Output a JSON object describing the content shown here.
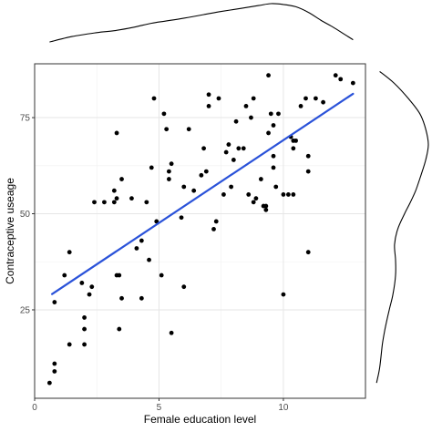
{
  "chart_data": {
    "type": "scatter",
    "xlabel": "Female education level",
    "ylabel": "Contraceptive useage",
    "xlim": [
      0,
      13.3
    ],
    "ylim": [
      2,
      89
    ],
    "x_ticks": [
      0,
      5,
      10
    ],
    "y_ticks": [
      25,
      50,
      75
    ],
    "x_tick_labels": [
      "0",
      "5",
      "10"
    ],
    "y_tick_labels": [
      "25",
      "50",
      "75"
    ],
    "grid": true,
    "marginal_density": "top and right",
    "trend_line": {
      "x": [
        0.7,
        12.8
      ],
      "y": [
        29.1,
        81.2
      ]
    },
    "points": [
      [
        0.6,
        6
      ],
      [
        0.8,
        9
      ],
      [
        0.8,
        11
      ],
      [
        0.8,
        27
      ],
      [
        1.2,
        34
      ],
      [
        1.4,
        40
      ],
      [
        1.4,
        16
      ],
      [
        1.9,
        32
      ],
      [
        2.0,
        23
      ],
      [
        2.0,
        20
      ],
      [
        2.0,
        16
      ],
      [
        2.2,
        29
      ],
      [
        2.3,
        31
      ],
      [
        2.4,
        53
      ],
      [
        2.8,
        53
      ],
      [
        3.2,
        53
      ],
      [
        3.2,
        56
      ],
      [
        3.3,
        54
      ],
      [
        3.3,
        71
      ],
      [
        3.3,
        34
      ],
      [
        3.4,
        34
      ],
      [
        3.4,
        20
      ],
      [
        3.5,
        59
      ],
      [
        3.5,
        28
      ],
      [
        3.9,
        54
      ],
      [
        4.1,
        41
      ],
      [
        4.3,
        43
      ],
      [
        4.3,
        28
      ],
      [
        4.5,
        53
      ],
      [
        4.6,
        38
      ],
      [
        4.7,
        62
      ],
      [
        4.8,
        80
      ],
      [
        4.9,
        48
      ],
      [
        5.1,
        34
      ],
      [
        5.2,
        76
      ],
      [
        5.3,
        72
      ],
      [
        5.4,
        61
      ],
      [
        5.4,
        59
      ],
      [
        5.5,
        63
      ],
      [
        5.5,
        19
      ],
      [
        5.9,
        49
      ],
      [
        6.0,
        57
      ],
      [
        6.0,
        31
      ],
      [
        6.2,
        72
      ],
      [
        6.4,
        56
      ],
      [
        6.7,
        60
      ],
      [
        6.8,
        67
      ],
      [
        6.9,
        61
      ],
      [
        7.0,
        81
      ],
      [
        7.0,
        78
      ],
      [
        7.2,
        46
      ],
      [
        7.3,
        48
      ],
      [
        7.4,
        80
      ],
      [
        7.6,
        55
      ],
      [
        7.7,
        66
      ],
      [
        7.8,
        68
      ],
      [
        7.9,
        57
      ],
      [
        8.0,
        64
      ],
      [
        8.1,
        74
      ],
      [
        8.2,
        67
      ],
      [
        8.4,
        67
      ],
      [
        8.5,
        78
      ],
      [
        8.6,
        55
      ],
      [
        8.7,
        75
      ],
      [
        8.8,
        80
      ],
      [
        8.8,
        53
      ],
      [
        8.9,
        54
      ],
      [
        9.1,
        59
      ],
      [
        9.2,
        52
      ],
      [
        9.3,
        51
      ],
      [
        9.3,
        52
      ],
      [
        9.4,
        86
      ],
      [
        9.4,
        71
      ],
      [
        9.5,
        76
      ],
      [
        9.6,
        73
      ],
      [
        9.6,
        65
      ],
      [
        9.6,
        62
      ],
      [
        9.7,
        57
      ],
      [
        9.8,
        76
      ],
      [
        10.0,
        55
      ],
      [
        10.0,
        29
      ],
      [
        10.2,
        55
      ],
      [
        10.3,
        70
      ],
      [
        10.4,
        69
      ],
      [
        10.4,
        67
      ],
      [
        10.4,
        55
      ],
      [
        10.5,
        69
      ],
      [
        10.7,
        78
      ],
      [
        10.9,
        80
      ],
      [
        11.0,
        65
      ],
      [
        11.0,
        61
      ],
      [
        11.0,
        40
      ],
      [
        11.3,
        80
      ],
      [
        11.6,
        79
      ],
      [
        12.1,
        86
      ],
      [
        12.3,
        85
      ],
      [
        12.8,
        84
      ]
    ],
    "top_density": [
      [
        0.6,
        0.02
      ],
      [
        1.5,
        0.16
      ],
      [
        2.5,
        0.26
      ],
      [
        3.2,
        0.31
      ],
      [
        4.0,
        0.4
      ],
      [
        4.7,
        0.5
      ],
      [
        5.3,
        0.56
      ],
      [
        6.0,
        0.63
      ],
      [
        6.8,
        0.72
      ],
      [
        7.5,
        0.8
      ],
      [
        8.3,
        0.88
      ],
      [
        9.0,
        0.95
      ],
      [
        9.5,
        1.0
      ],
      [
        10.0,
        0.98
      ],
      [
        10.5,
        0.92
      ],
      [
        11.0,
        0.78
      ],
      [
        11.5,
        0.58
      ],
      [
        12.0,
        0.4
      ],
      [
        12.4,
        0.24
      ],
      [
        12.8,
        0.08
      ]
    ],
    "right_density": [
      [
        6,
        0.02
      ],
      [
        10,
        0.08
      ],
      [
        16,
        0.13
      ],
      [
        20,
        0.18
      ],
      [
        25,
        0.26
      ],
      [
        29,
        0.33
      ],
      [
        34,
        0.38
      ],
      [
        38,
        0.38
      ],
      [
        42,
        0.36
      ],
      [
        46,
        0.42
      ],
      [
        50,
        0.55
      ],
      [
        53,
        0.66
      ],
      [
        56,
        0.76
      ],
      [
        60,
        0.86
      ],
      [
        64,
        0.95
      ],
      [
        68,
        1.0
      ],
      [
        72,
        0.95
      ],
      [
        76,
        0.84
      ],
      [
        80,
        0.62
      ],
      [
        84,
        0.35
      ],
      [
        87,
        0.08
      ]
    ]
  }
}
